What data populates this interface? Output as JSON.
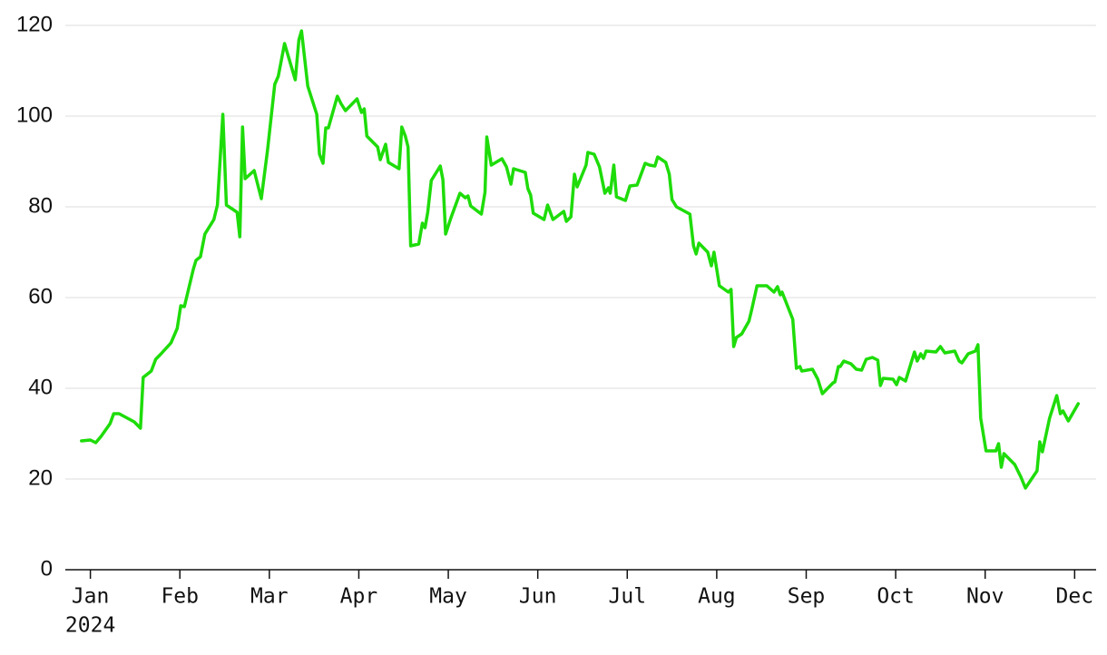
{
  "chart_data": {
    "type": "line",
    "x_year": "2024",
    "xlim": [
      -0.28,
      11.24
    ],
    "xticks": [
      {
        "value": 0,
        "label": "Jan"
      },
      {
        "value": 1,
        "label": "Feb"
      },
      {
        "value": 2,
        "label": "Mar"
      },
      {
        "value": 3,
        "label": "Apr"
      },
      {
        "value": 4,
        "label": "May"
      },
      {
        "value": 5,
        "label": "Jun"
      },
      {
        "value": 6,
        "label": "Jul"
      },
      {
        "value": 7,
        "label": "Aug"
      },
      {
        "value": 8,
        "label": "Sep"
      },
      {
        "value": 9,
        "label": "Oct"
      },
      {
        "value": 10,
        "label": "Nov"
      },
      {
        "value": 11,
        "label": "Dec"
      }
    ],
    "ylim": [
      0,
      120
    ],
    "yticks": [
      0,
      20,
      40,
      60,
      80,
      100,
      120
    ],
    "grid": true,
    "x": [
      -0.1,
      0,
      0.06,
      0.12,
      0.22,
      0.26,
      0.32,
      0.49,
      0.56,
      0.59,
      0.68,
      0.73,
      0.79,
      0.9,
      0.97,
      1.01,
      1.05,
      1.15,
      1.18,
      1.23,
      1.28,
      1.38,
      1.42,
      1.48,
      1.52,
      1.64,
      1.67,
      1.7,
      1.73,
      1.83,
      1.91,
      1.98,
      2.06,
      2.1,
      2.17,
      2.29,
      2.33,
      2.36,
      2.43,
      2.53,
      2.56,
      2.6,
      2.63,
      2.66,
      2.76,
      2.8,
      2.85,
      2.98,
      3.03,
      3.06,
      3.09,
      3.21,
      3.24,
      3.3,
      3.33,
      3.45,
      3.48,
      3.52,
      3.55,
      3.58,
      3.67,
      3.71,
      3.74,
      3.77,
      3.81,
      3.91,
      3.94,
      3.97,
      4.03,
      4.13,
      4.19,
      4.22,
      4.25,
      4.37,
      4.41,
      4.43,
      4.48,
      4.6,
      4.65,
      4.7,
      4.73,
      4.86,
      4.89,
      4.92,
      4.95,
      5.07,
      5.11,
      5.17,
      5.29,
      5.32,
      5.37,
      5.41,
      5.44,
      5.54,
      5.56,
      5.63,
      5.69,
      5.75,
      5.79,
      5.81,
      5.85,
      5.88,
      5.98,
      6.03,
      6.11,
      6.2,
      6.25,
      6.31,
      6.34,
      6.43,
      6.47,
      6.5,
      6.55,
      6.7,
      6.74,
      6.77,
      6.8,
      6.9,
      6.94,
      6.97,
      7.03,
      7.13,
      7.16,
      7.19,
      7.22,
      7.28,
      7.36,
      7.39,
      7.45,
      7.56,
      7.64,
      7.68,
      7.71,
      7.73,
      7.85,
      7.89,
      7.93,
      7.95,
      8.07,
      8.13,
      8.18,
      8.3,
      8.32,
      8.36,
      8.38,
      8.42,
      8.5,
      8.56,
      8.62,
      8.67,
      8.74,
      8.8,
      8.83,
      8.86,
      8.97,
      9.01,
      9.04,
      9.11,
      9.21,
      9.24,
      9.28,
      9.31,
      9.34,
      9.45,
      9.5,
      9.55,
      9.66,
      9.71,
      9.74,
      9.81,
      9.89,
      9.92,
      9.95,
      10.01,
      10.12,
      10.15,
      10.18,
      10.21,
      10.33,
      10.4,
      10.45,
      10.58,
      10.61,
      10.64,
      10.72,
      10.8,
      10.84,
      10.87,
      10.93,
      11.04
    ],
    "series": [
      {
        "color": "#1edc0a",
        "values": [
          28.4,
          28.6,
          28,
          29.4,
          32.2,
          34.4,
          34.4,
          32.6,
          31.2,
          42.4,
          43.8,
          46.4,
          47.6,
          50,
          53.2,
          58.2,
          58,
          66.2,
          68.2,
          69,
          74,
          77.2,
          80.4,
          100.4,
          80.4,
          78.8,
          73.4,
          97.6,
          86.2,
          88,
          81.8,
          92.6,
          107,
          108.8,
          116,
          108,
          116.8,
          118.8,
          106.6,
          100.4,
          91.6,
          89.6,
          97.4,
          97.4,
          104.4,
          102.8,
          101.2,
          103.8,
          100.8,
          101.6,
          95.6,
          93.2,
          90.4,
          93.8,
          89.8,
          88.4,
          97.6,
          95.6,
          93.2,
          71.4,
          71.8,
          76.4,
          75.4,
          78.8,
          85.8,
          89,
          86,
          74,
          77.6,
          83,
          82,
          82.4,
          80.2,
          78.4,
          83.2,
          95.4,
          89.2,
          90.6,
          88.8,
          85,
          88.4,
          87.6,
          84,
          82.6,
          78.6,
          77.2,
          80.4,
          77.2,
          79,
          76.8,
          77.8,
          87.2,
          84.4,
          89.2,
          92,
          91.6,
          88.8,
          83,
          84.2,
          83,
          89.2,
          82.2,
          81.4,
          84.6,
          84.8,
          89.6,
          89.2,
          89,
          91,
          89.8,
          87.2,
          81.6,
          80,
          78.4,
          71.4,
          69.6,
          72,
          70,
          67,
          70,
          62.6,
          61.2,
          61.8,
          49.2,
          51.2,
          52,
          54.8,
          57.2,
          62.6,
          62.6,
          61.2,
          62.4,
          60.6,
          61.2,
          55.2,
          44.4,
          44.8,
          43.8,
          44.2,
          42,
          38.8,
          41.2,
          41.4,
          44.8,
          44.8,
          46,
          45.4,
          44.2,
          44,
          46.4,
          46.8,
          46.2,
          40.6,
          42.2,
          42,
          40.8,
          42.4,
          41.6,
          48,
          46,
          47.6,
          46.6,
          48.2,
          48,
          49.2,
          47.8,
          48.2,
          46,
          45.6,
          47.6,
          48.2,
          49.6,
          33.4,
          26.2,
          26.2,
          27.8,
          22.6,
          25.6,
          23.2,
          20.4,
          18,
          21.8,
          28.2,
          26,
          33.4,
          38.4,
          34.4,
          35,
          32.8,
          36.6
        ]
      }
    ]
  }
}
